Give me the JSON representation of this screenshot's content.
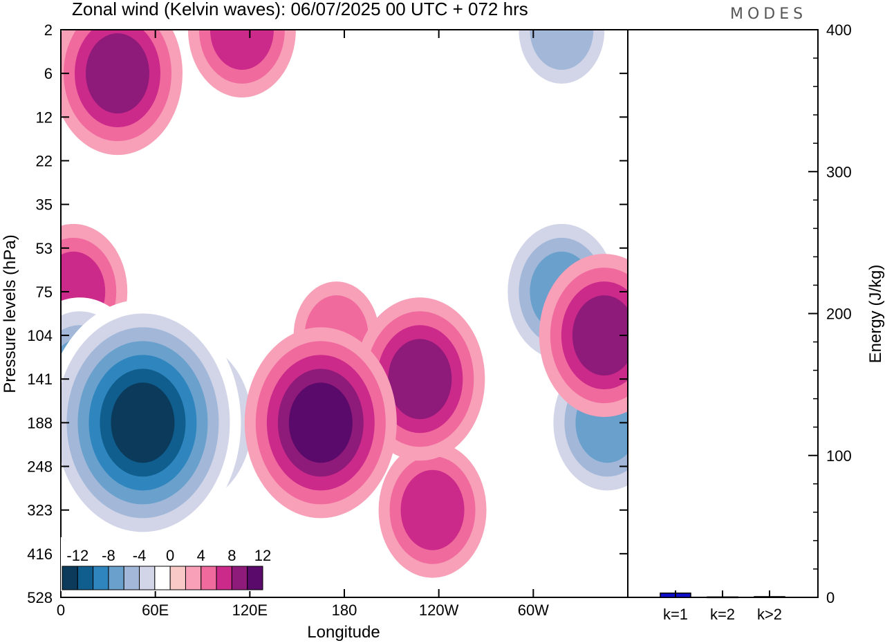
{
  "brand": "MODES",
  "chart_data": [
    {
      "type": "heatmap",
      "title": "Zonal wind (Kelvin waves):  06/07/2025  00 UTC  + 072 hrs",
      "xlabel": "Longitude",
      "ylabel": "Pressure levels (hPa)",
      "x_ticks": [
        "0",
        "60E",
        "120E",
        "180",
        "120W",
        "60W"
      ],
      "x_tick_values": [
        0,
        60,
        120,
        180,
        240,
        300
      ],
      "xlim": [
        0,
        360
      ],
      "y_ticks": [
        "2",
        "6",
        "12",
        "22",
        "35",
        "53",
        "75",
        "104",
        "141",
        "188",
        "248",
        "323",
        "416",
        "528"
      ],
      "colorbar": {
        "labels": [
          "-12",
          "-8",
          "-4",
          "0",
          "4",
          "8",
          "12"
        ],
        "levels": [
          -14,
          -12,
          -10,
          -8,
          -6,
          -4,
          -2,
          2,
          4,
          6,
          8,
          10,
          12,
          14
        ],
        "colors": [
          "#0b3a5a",
          "#0f5e8e",
          "#2f86bf",
          "#6aa0cc",
          "#a3b8d8",
          "#d2d5e8",
          "#ffffff",
          "#f9c9c8",
          "#f7a0b8",
          "#f06a9e",
          "#cc2a8a",
          "#8e1a7a",
          "#5a0a6a"
        ]
      },
      "features": [
        {
          "sign": "negative",
          "peak": -14,
          "lon": 52,
          "level": "188"
        },
        {
          "sign": "negative",
          "peak": -10,
          "lon": 80,
          "level": "188"
        },
        {
          "sign": "negative",
          "peak": -8,
          "lon": 12,
          "level": "141"
        },
        {
          "sign": "negative",
          "peak": -8,
          "lon": 318,
          "level": "75"
        },
        {
          "sign": "negative",
          "peak": -8,
          "lon": 347,
          "level": "188"
        },
        {
          "sign": "negative",
          "peak": -6,
          "lon": 318,
          "level": "2"
        },
        {
          "sign": "positive",
          "peak": 10,
          "lon": 165,
          "level": "188"
        },
        {
          "sign": "positive",
          "peak": 8,
          "lon": 228,
          "level": "141"
        },
        {
          "sign": "positive",
          "peak": 8,
          "lon": 345,
          "level": "104"
        },
        {
          "sign": "positive",
          "peak": 8,
          "lon": 36,
          "level": "6"
        },
        {
          "sign": "positive",
          "peak": 6,
          "lon": 115,
          "level": "2"
        },
        {
          "sign": "positive",
          "peak": 6,
          "lon": 8,
          "level": "75"
        },
        {
          "sign": "positive",
          "peak": 6,
          "lon": 236,
          "level": "323"
        },
        {
          "sign": "positive",
          "peak": 4,
          "lon": 175,
          "level": "104"
        }
      ]
    },
    {
      "type": "bar",
      "categories": [
        "k=1",
        "k=2",
        "k>2"
      ],
      "values": [
        3,
        0.3,
        0.5
      ],
      "ylabel": "Energy (J/kg)",
      "ylim": [
        0,
        400
      ],
      "y_ticks": [
        "0",
        "100",
        "200",
        "300",
        "400"
      ],
      "bar_color": "#1010cc"
    }
  ]
}
